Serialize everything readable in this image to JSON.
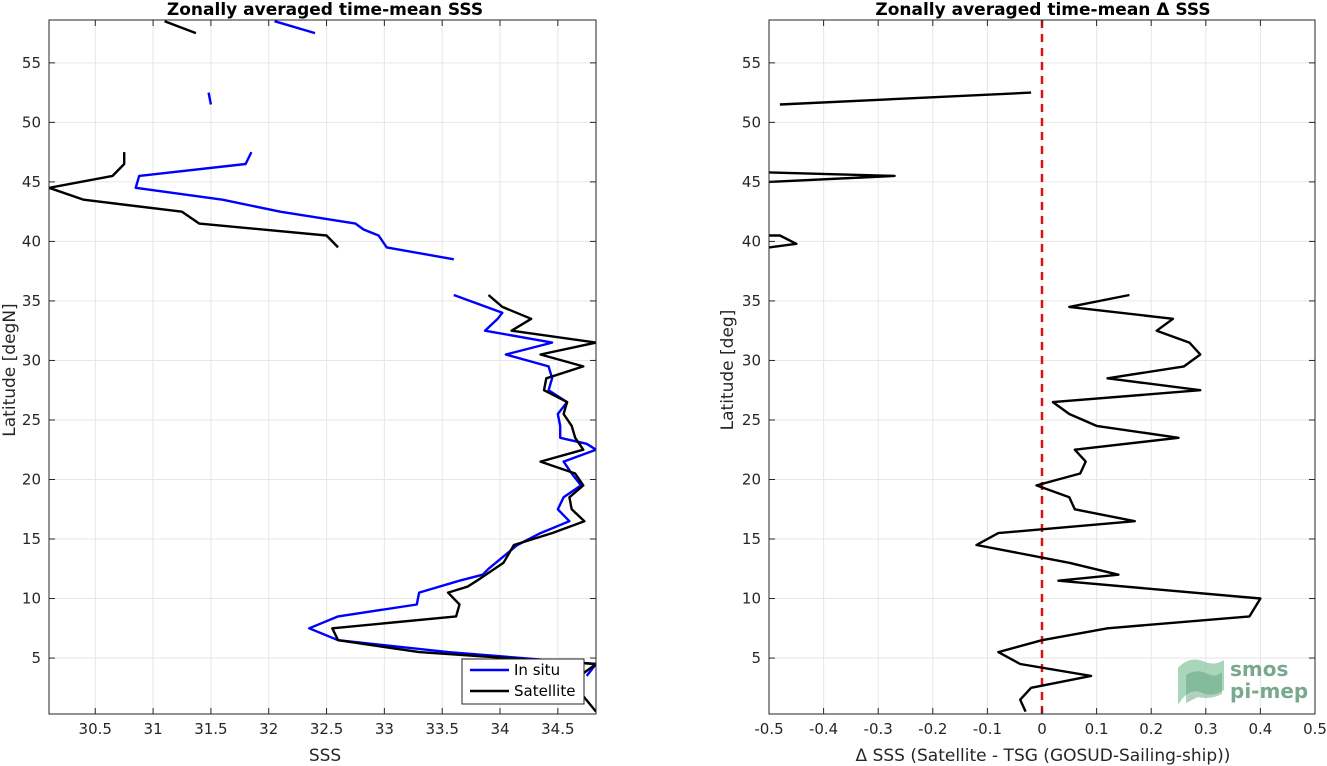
{
  "chart_data": [
    {
      "type": "line",
      "title": "Zonally averaged time-mean SSS",
      "xlabel": "SSS",
      "ylabel": "Latitude [degN]",
      "xlim": [
        30.1,
        34.83
      ],
      "ylim": [
        0.3,
        58.6
      ],
      "xticks": [
        30.5,
        31,
        31.5,
        32,
        32.5,
        33,
        33.5,
        34,
        34.5
      ],
      "xticklabels": [
        "30.5",
        "31",
        "31.5",
        "32",
        "32.5",
        "33",
        "33.5",
        "34",
        "34.5"
      ],
      "yticks": [
        5,
        10,
        15,
        20,
        25,
        30,
        35,
        40,
        45,
        50,
        55
      ],
      "yticklabels": [
        "5",
        "10",
        "15",
        "20",
        "25",
        "30",
        "35",
        "40",
        "45",
        "50",
        "55"
      ],
      "grid": true,
      "legend": "bottom-right",
      "series": [
        {
          "name": "In situ",
          "color": "#0000ff",
          "segments": [
            [
              [
                32.05,
                58.5
              ],
              [
                32.4,
                57.5
              ]
            ],
            [
              [
                31.48,
                52.5
              ],
              [
                31.5,
                51.5
              ]
            ],
            [
              [
                31.85,
                47.5
              ],
              [
                31.8,
                46.5
              ],
              [
                30.88,
                45.5
              ],
              [
                30.85,
                44.5
              ],
              [
                31.6,
                43.5
              ],
              [
                32.1,
                42.5
              ],
              [
                32.75,
                41.5
              ],
              [
                32.82,
                41.0
              ],
              [
                32.95,
                40.5
              ],
              [
                33.02,
                39.5
              ],
              [
                33.6,
                38.5
              ]
            ],
            [
              [
                33.6,
                35.5
              ],
              [
                34.02,
                34.0
              ],
              [
                33.98,
                33.5
              ],
              [
                33.87,
                32.5
              ],
              [
                34.45,
                31.5
              ],
              [
                34.05,
                30.5
              ],
              [
                34.42,
                29.5
              ],
              [
                34.45,
                28.5
              ],
              [
                34.42,
                27.5
              ],
              [
                34.58,
                26.5
              ],
              [
                34.5,
                25.5
              ],
              [
                34.52,
                24.5
              ],
              [
                34.52,
                23.5
              ],
              [
                34.75,
                23.0
              ],
              [
                34.83,
                22.5
              ],
              [
                34.55,
                21.5
              ],
              [
                34.62,
                20.5
              ],
              [
                34.7,
                19.5
              ],
              [
                34.55,
                18.5
              ],
              [
                34.5,
                17.5
              ],
              [
                34.6,
                16.5
              ],
              [
                34.35,
                15.5
              ],
              [
                34.15,
                14.5
              ],
              [
                33.9,
                12.5
              ],
              [
                33.85,
                12.0
              ],
              [
                33.65,
                11.5
              ],
              [
                33.3,
                10.5
              ],
              [
                33.28,
                9.5
              ],
              [
                32.6,
                8.5
              ],
              [
                32.35,
                7.5
              ],
              [
                32.6,
                6.5
              ],
              [
                33.55,
                5.5
              ],
              [
                34.83,
                4.5
              ],
              [
                34.75,
                3.5
              ]
            ]
          ]
        },
        {
          "name": "Satellite",
          "color": "#000000",
          "segments": [
            [
              [
                31.1,
                58.5
              ],
              [
                31.37,
                57.5
              ]
            ],
            [
              [
                30.75,
                47.5
              ],
              [
                30.75,
                46.5
              ],
              [
                30.65,
                45.5
              ],
              [
                30.1,
                44.5
              ],
              [
                30.4,
                43.5
              ],
              [
                31.25,
                42.5
              ],
              [
                31.4,
                41.5
              ],
              [
                32.5,
                40.5
              ],
              [
                32.6,
                39.5
              ]
            ],
            [
              [
                33.9,
                35.5
              ],
              [
                34.02,
                34.5
              ],
              [
                34.27,
                33.5
              ],
              [
                34.1,
                32.5
              ],
              [
                34.83,
                31.5
              ],
              [
                34.35,
                30.5
              ],
              [
                34.72,
                29.5
              ],
              [
                34.4,
                28.5
              ],
              [
                34.38,
                27.5
              ],
              [
                34.58,
                26.5
              ],
              [
                34.55,
                25.5
              ],
              [
                34.62,
                24.5
              ],
              [
                34.65,
                23.5
              ],
              [
                34.72,
                22.5
              ],
              [
                34.35,
                21.5
              ],
              [
                34.65,
                20.5
              ],
              [
                34.72,
                19.5
              ],
              [
                34.6,
                18.5
              ],
              [
                34.62,
                17.5
              ],
              [
                34.73,
                16.5
              ],
              [
                34.45,
                15.5
              ],
              [
                34.12,
                14.5
              ],
              [
                34.03,
                13.0
              ],
              [
                33.8,
                11.5
              ],
              [
                33.72,
                11.0
              ],
              [
                33.55,
                10.5
              ],
              [
                33.65,
                9.5
              ],
              [
                33.62,
                8.5
              ],
              [
                32.55,
                7.5
              ],
              [
                32.6,
                6.5
              ],
              [
                33.3,
                5.5
              ],
              [
                34.83,
                4.5
              ],
              [
                34.62,
                3.0
              ],
              [
                34.83,
                0.5
              ]
            ]
          ]
        }
      ]
    },
    {
      "type": "line",
      "title": "Zonally averaged time-mean Δ SSS",
      "xlabel": "Δ SSS (Satellite - TSG (GOSUD-Sailing-ship))",
      "ylabel": "Latitude [deg]",
      "xlim": [
        -0.5,
        0.5
      ],
      "ylim": [
        0.3,
        58.6
      ],
      "xticks": [
        -0.5,
        -0.4,
        -0.3,
        -0.2,
        -0.1,
        0,
        0.1,
        0.2,
        0.3,
        0.4,
        0.5
      ],
      "xticklabels": [
        "-0.5",
        "-0.4",
        "-0.3",
        "-0.2",
        "-0.1",
        "0",
        "0.1",
        "0.2",
        "0.3",
        "0.4",
        "0.5"
      ],
      "yticks": [
        5,
        10,
        15,
        20,
        25,
        30,
        35,
        40,
        45,
        50,
        55
      ],
      "yticklabels": [
        "5",
        "10",
        "15",
        "20",
        "25",
        "30",
        "35",
        "40",
        "45",
        "50",
        "55"
      ],
      "grid": true,
      "reference_line": {
        "x": 0,
        "color": "#e01010",
        "style": "dashed"
      },
      "series": [
        {
          "name": "",
          "color": "#000000",
          "segments": [
            [
              [
                -0.48,
                51.5
              ],
              [
                -0.02,
                52.5
              ]
            ],
            [
              [
                -0.5,
                45.8
              ],
              [
                -0.27,
                45.5
              ],
              [
                -0.5,
                45.0
              ]
            ],
            [
              [
                -0.5,
                40.5
              ],
              [
                -0.48,
                40.5
              ],
              [
                -0.45,
                39.8
              ],
              [
                -0.5,
                39.5
              ]
            ],
            [
              [
                0.16,
                35.5
              ],
              [
                0.05,
                34.5
              ],
              [
                0.24,
                33.5
              ],
              [
                0.21,
                32.5
              ],
              [
                0.27,
                31.5
              ],
              [
                0.29,
                30.5
              ],
              [
                0.26,
                29.5
              ],
              [
                0.12,
                28.5
              ],
              [
                0.29,
                27.5
              ],
              [
                0.02,
                26.5
              ],
              [
                0.05,
                25.5
              ],
              [
                0.1,
                24.5
              ],
              [
                0.25,
                23.5
              ],
              [
                0.06,
                22.5
              ],
              [
                0.08,
                21.5
              ],
              [
                0.07,
                20.5
              ],
              [
                -0.01,
                19.5
              ],
              [
                0.05,
                18.5
              ],
              [
                0.06,
                17.5
              ],
              [
                0.17,
                16.5
              ],
              [
                -0.08,
                15.5
              ],
              [
                -0.12,
                14.5
              ],
              [
                0.05,
                13.0
              ],
              [
                0.14,
                12.0
              ],
              [
                0.03,
                11.5
              ],
              [
                0.4,
                10.0
              ],
              [
                0.38,
                8.5
              ],
              [
                0.12,
                7.5
              ],
              [
                0.0,
                6.5
              ],
              [
                -0.08,
                5.5
              ],
              [
                -0.04,
                4.5
              ],
              [
                0.09,
                3.5
              ],
              [
                -0.02,
                2.5
              ],
              [
                -0.04,
                1.5
              ],
              [
                -0.03,
                0.5
              ]
            ]
          ]
        }
      ]
    }
  ],
  "legend": {
    "items": [
      {
        "label": "In situ",
        "color": "#0000ff"
      },
      {
        "label": "Satellite",
        "color": "#000000"
      }
    ]
  },
  "logo": {
    "line1": "smos",
    "line2": "pi-mep"
  }
}
